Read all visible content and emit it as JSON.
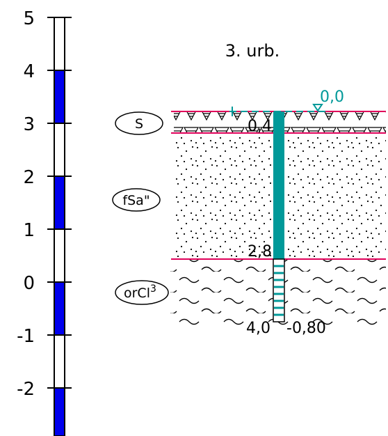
{
  "title": "3. urb.",
  "scale": {
    "labels": [
      "5",
      "4",
      "3",
      "2",
      "1",
      "0",
      "-1",
      "-2"
    ],
    "fill_color": "#0000ee",
    "segments": [
      {
        "from": 5,
        "to": 4,
        "filled": false
      },
      {
        "from": 4,
        "to": 3,
        "filled": true
      },
      {
        "from": 3,
        "to": 2,
        "filled": false
      },
      {
        "from": 2,
        "to": 1,
        "filled": true
      },
      {
        "from": 1,
        "to": 0,
        "filled": false
      },
      {
        "from": 0,
        "to": -1,
        "filled": true
      },
      {
        "from": -1,
        "to": -2,
        "filled": false
      },
      {
        "from": -2,
        "to": -2.95,
        "filled": true
      }
    ]
  },
  "borehole": {
    "water_level_label": "0,0",
    "bottom_elevation_label": "-0,80",
    "casing_color": "#009999",
    "layer_line_color": "#e0005a"
  },
  "layers": [
    {
      "code": "S",
      "superscript": "",
      "depth_label": "0,4",
      "pattern": "humus"
    },
    {
      "code": "fSa\"",
      "superscript": "",
      "depth_label": "2,8",
      "pattern": "dots"
    },
    {
      "code": "orCl",
      "superscript": "3",
      "depth_label": "4,0",
      "pattern": "waves"
    }
  ]
}
